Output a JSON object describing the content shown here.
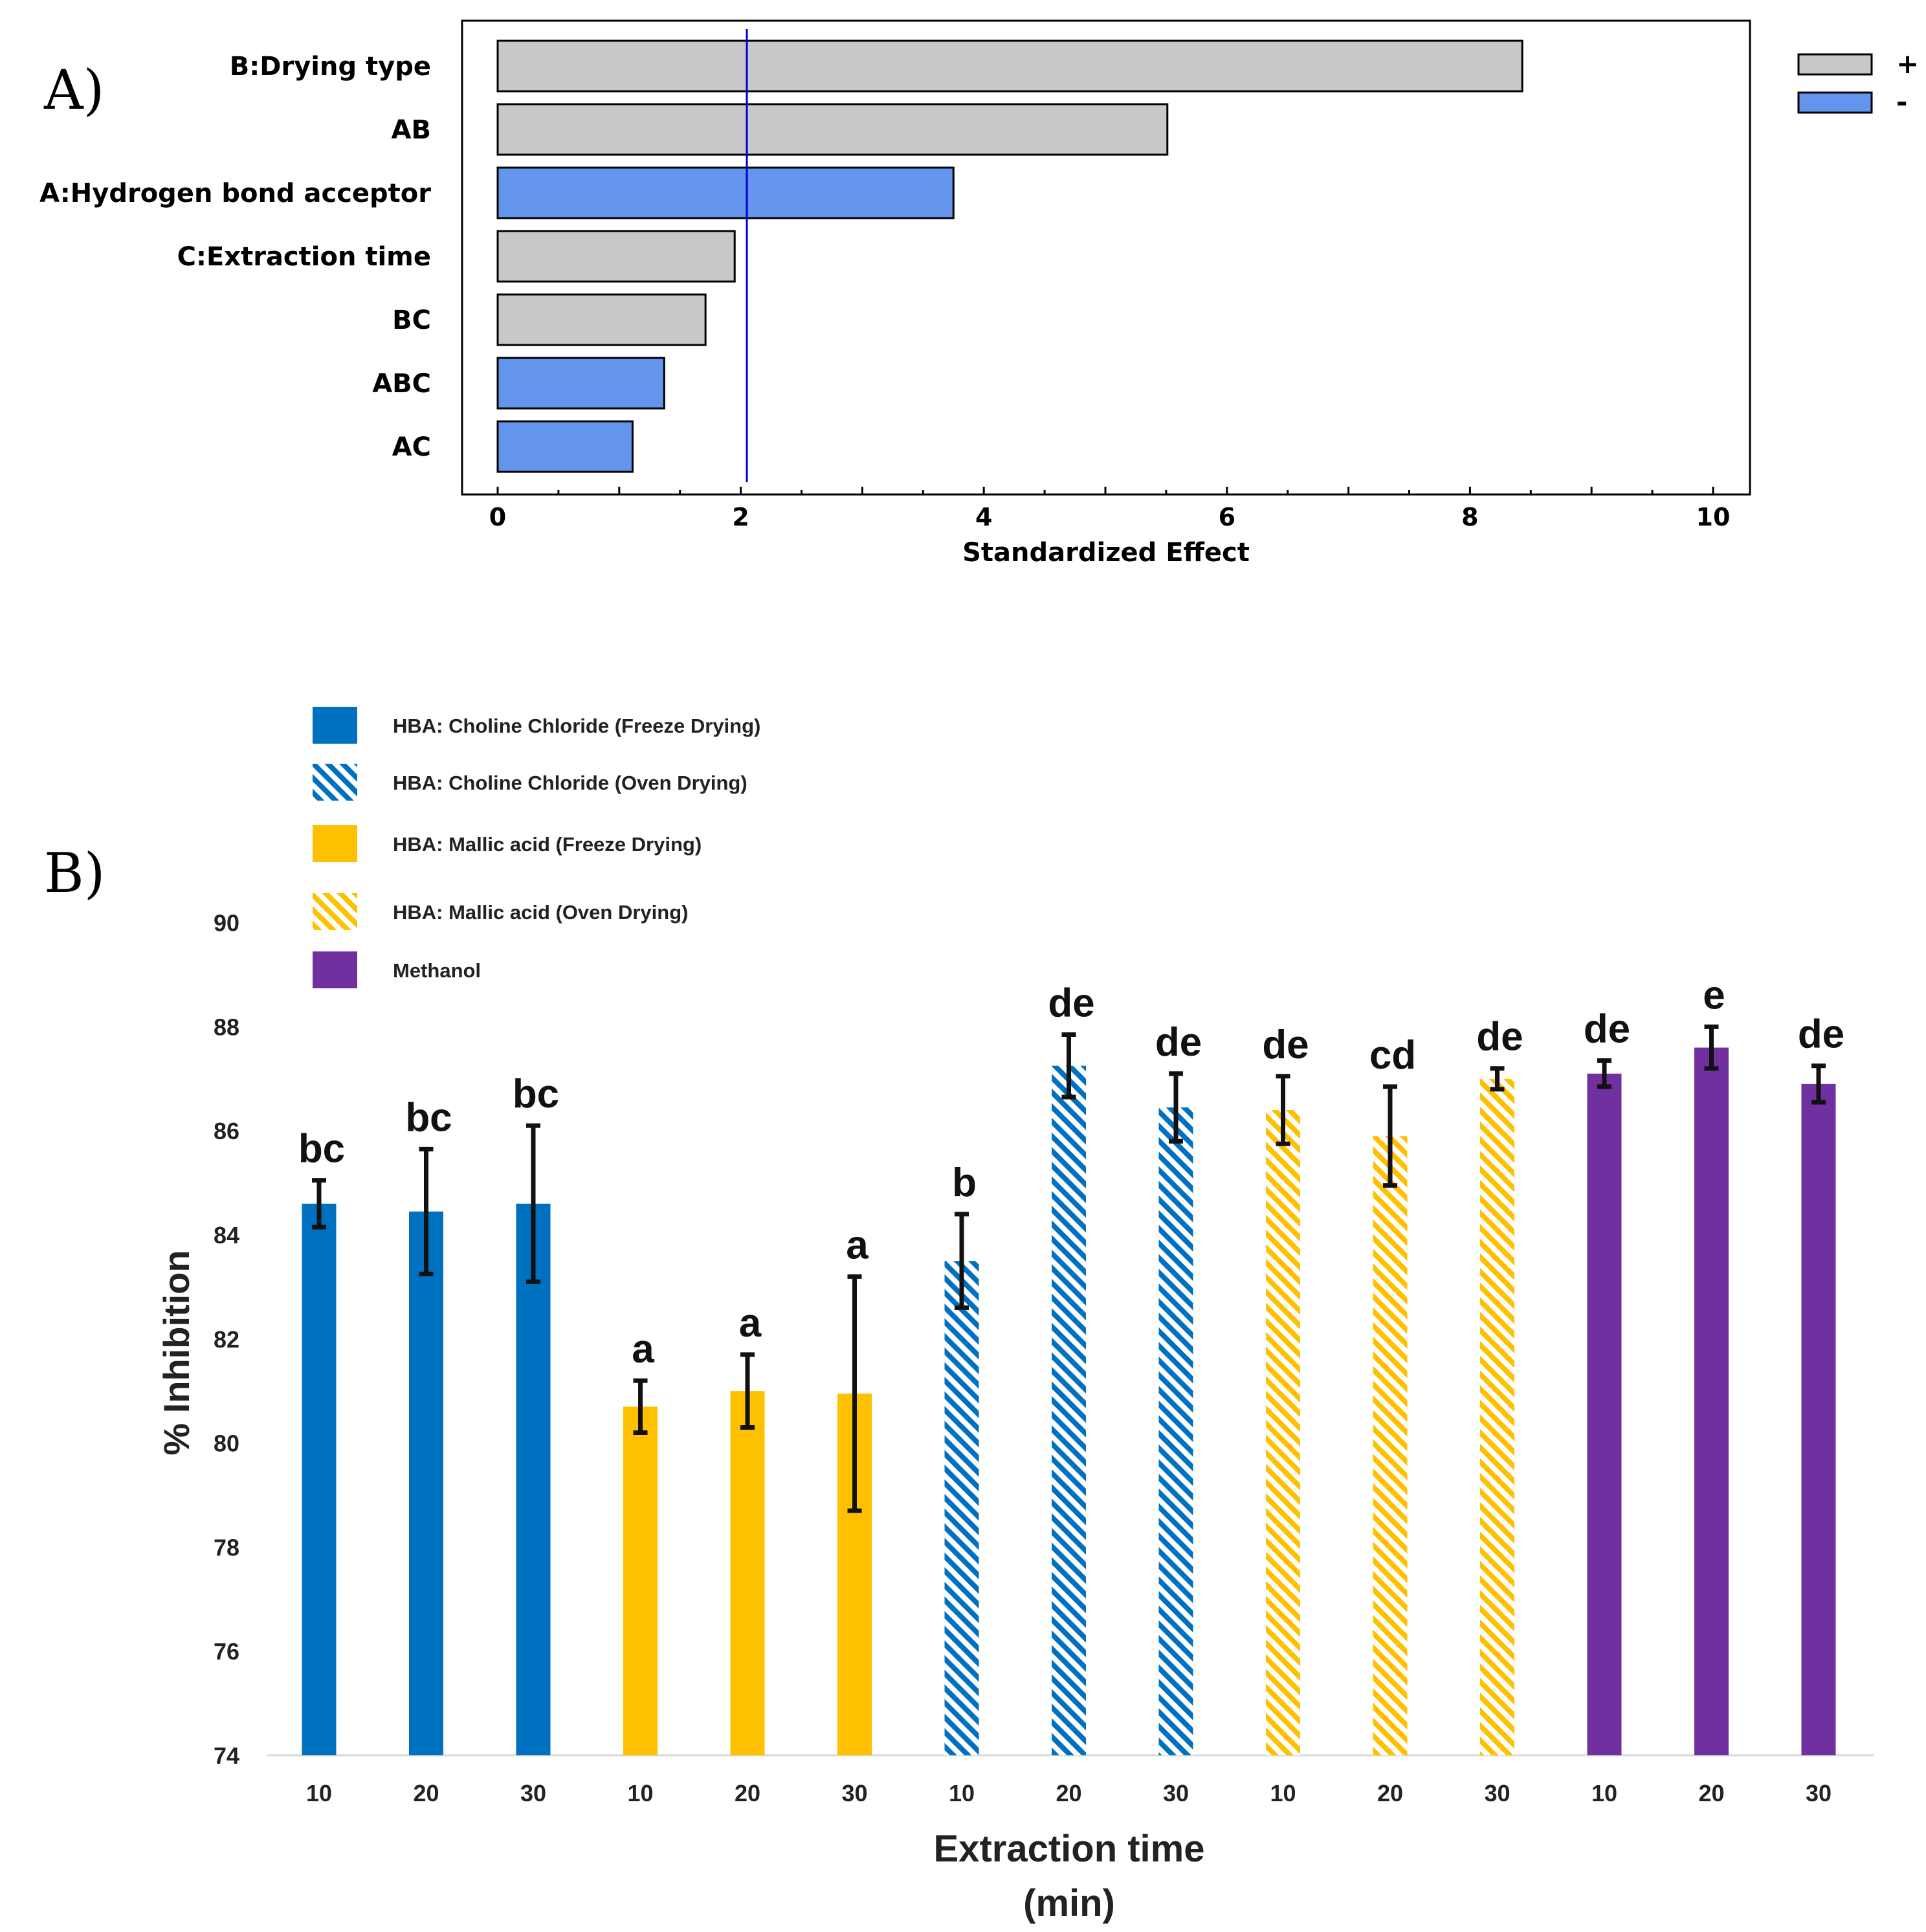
{
  "panel_a_label": "A)",
  "panel_b_label": "B)",
  "chart_data": [
    {
      "type": "bar",
      "orientation": "horizontal",
      "title": "",
      "xlabel": "Standardized Effect",
      "ylabel": "",
      "xlim": [
        0,
        10
      ],
      "xticks": [
        "0",
        "2",
        "4",
        "6",
        "8",
        "10"
      ],
      "reference_line": 2.05,
      "categories": [
        "B:Drying type",
        "AB",
        "A:Hydrogen bond acceptor",
        "C:Extraction time",
        "BC",
        "ABC",
        "AC"
      ],
      "values": [
        8.43,
        5.51,
        3.75,
        1.95,
        1.71,
        1.37,
        1.11
      ],
      "signs": [
        "+",
        "+",
        "-",
        "+",
        "+",
        "-",
        "-"
      ],
      "legend": {
        "position": "top-right",
        "entries": [
          {
            "label": "+",
            "color": "#c8c8c8"
          },
          {
            "label": "-",
            "color": "#6495ed"
          }
        ]
      }
    },
    {
      "type": "bar",
      "title": "",
      "xlabel_line1": "Extraction time",
      "xlabel_line2": "(min)",
      "ylabel": "% Inhibition",
      "ylim": [
        74,
        90
      ],
      "yticks": [
        "74",
        "76",
        "78",
        "80",
        "82",
        "84",
        "86",
        "88",
        "90"
      ],
      "legend": {
        "position": "top-left"
      },
      "series": [
        {
          "name": "HBA: Choline Chloride (Freeze Drying)",
          "color": "#0070c0",
          "pattern": "solid",
          "x": [
            "10",
            "20",
            "30"
          ],
          "values": [
            84.6,
            84.45,
            84.6
          ],
          "errors": [
            0.45,
            1.2,
            1.5
          ],
          "labels": [
            "bc",
            "bc",
            "bc"
          ]
        },
        {
          "name": "HBA: Mallic acid (Freeze Drying)",
          "color": "#ffc000",
          "pattern": "solid",
          "x": [
            "10",
            "20",
            "30"
          ],
          "values": [
            80.7,
            81.0,
            80.95
          ],
          "errors": [
            0.5,
            0.7,
            2.25
          ],
          "labels": [
            "a",
            "a",
            "a"
          ]
        },
        {
          "name": "HBA: Choline Chloride (Oven Drying)",
          "color": "#0070c0",
          "pattern": "hatch",
          "x": [
            "10",
            "20",
            "30"
          ],
          "values": [
            83.5,
            87.25,
            86.45
          ],
          "errors": [
            0.9,
            0.6,
            0.65
          ],
          "labels": [
            "b",
            "de",
            "de"
          ]
        },
        {
          "name": "HBA: Mallic acid (Oven Drying)",
          "color": "#ffc000",
          "pattern": "hatch",
          "x": [
            "10",
            "20",
            "30"
          ],
          "values": [
            86.4,
            85.9,
            87.0
          ],
          "errors": [
            0.65,
            0.95,
            0.2
          ],
          "labels": [
            "de",
            "cd",
            "de"
          ]
        },
        {
          "name": "Methanol",
          "color": "#7030a0",
          "pattern": "solid",
          "x": [
            "10",
            "20",
            "30"
          ],
          "values": [
            87.1,
            87.6,
            86.9
          ],
          "errors": [
            0.25,
            0.4,
            0.35
          ],
          "labels": [
            "de",
            "e",
            "de"
          ]
        }
      ],
      "legend_order": [
        0,
        2,
        1,
        3,
        4
      ]
    }
  ]
}
